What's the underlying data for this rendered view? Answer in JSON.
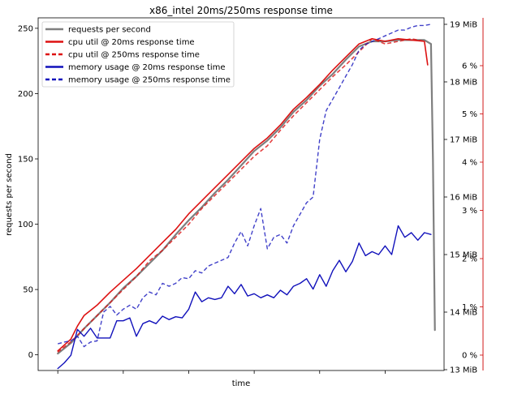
{
  "chart_data": {
    "type": "line",
    "title": "x86_intel 20ms/250ms response time",
    "xlabel": "time",
    "ylabel": "requests per second",
    "ylim": [
      -12,
      258
    ],
    "yticks": [
      0,
      50,
      100,
      150,
      200,
      250
    ],
    "xlim": [
      -3,
      59
    ],
    "xticks": [
      0,
      10,
      20,
      30,
      40,
      50,
      60
    ],
    "right_axis_mem": {
      "ticks": [
        "13 MiB",
        "14 MiB",
        "15 MiB",
        "16 MiB",
        "17 MiB",
        "18 MiB",
        "19 MiB"
      ]
    },
    "right_axis_cpu": {
      "color": "#cc0000",
      "ticks": [
        "0 %",
        "1 %",
        "2 %",
        "3 %",
        "4 %",
        "5 %",
        "6 %"
      ]
    },
    "legend": {
      "placement": "upper-left",
      "entries": [
        {
          "label": "requests per second",
          "color": "#7f7f7f",
          "dash": "solid"
        },
        {
          "label": "cpu util @ 20ms response time",
          "color": "#dd1111",
          "dash": "solid"
        },
        {
          "label": "cpu util @ 250ms response time",
          "color": "#dd1111",
          "dash": "dashed"
        },
        {
          "label": "memory usage @ 20ms response time",
          "color": "#1111bb",
          "dash": "solid"
        },
        {
          "label": "memory usage @ 250ms response time",
          "color": "#1111bb",
          "dash": "dashed"
        }
      ]
    },
    "series": [
      {
        "name": "requests per second",
        "color": "#7f7f7f",
        "dash": "solid",
        "width": 2.2,
        "x": [
          0,
          2,
          4,
          6,
          8,
          10,
          12,
          14,
          16,
          18,
          20,
          22,
          24,
          26,
          28,
          30,
          32,
          34,
          36,
          38,
          40,
          42,
          44,
          46,
          48,
          50,
          52,
          54,
          56,
          57,
          57.3,
          57.6
        ],
        "y": [
          1,
          9,
          20,
          30,
          40,
          51,
          60,
          70,
          80,
          92,
          103,
          113,
          124,
          134,
          145,
          156,
          164,
          174,
          186,
          195,
          206,
          215,
          226,
          236,
          240,
          240,
          241,
          241,
          241,
          238,
          150,
          19
        ]
      },
      {
        "name": "cpu util @ 20ms response time",
        "color": "#dd1111",
        "dash": "solid",
        "width": 1.6,
        "x": [
          0,
          2,
          3,
          4,
          6,
          8,
          10,
          12,
          14,
          16,
          18,
          20,
          22,
          24,
          26,
          28,
          30,
          32,
          34,
          36,
          38,
          40,
          42,
          44,
          46,
          48,
          50,
          52,
          54,
          56,
          56.5
        ],
        "y": [
          3,
          12,
          22,
          30,
          38,
          48,
          57,
          66,
          76,
          86,
          96,
          108,
          118,
          128,
          138,
          148,
          158,
          166,
          176,
          188,
          197,
          207,
          218,
          228,
          238,
          242,
          240,
          242,
          241,
          240,
          222
        ]
      },
      {
        "name": "cpu util @ 250ms response time",
        "color": "#dd1111",
        "dash": "dashed",
        "width": 1.6,
        "x": [
          0,
          2,
          4,
          6,
          8,
          10,
          12,
          14,
          16,
          18,
          20,
          22,
          24,
          26,
          28,
          30,
          32,
          34,
          36,
          38,
          40,
          42,
          44,
          46,
          48,
          50,
          52,
          54,
          56
        ],
        "y": [
          2,
          10,
          20,
          30,
          40,
          50,
          60,
          72,
          80,
          90,
          100,
          112,
          122,
          132,
          142,
          152,
          160,
          172,
          183,
          193,
          203,
          213,
          222,
          232,
          242,
          238,
          240,
          242,
          240
        ]
      },
      {
        "name": "memory usage @ 20ms response time",
        "color": "#1111bb",
        "dash": "solid",
        "width": 1.4,
        "x": [
          0,
          1,
          2,
          3,
          4,
          5,
          6,
          7,
          8,
          9,
          10,
          11,
          12,
          13,
          14,
          15,
          16,
          17,
          18,
          19,
          20,
          21,
          22,
          23,
          24,
          25,
          26,
          27,
          28,
          29,
          30,
          31,
          32,
          33,
          34,
          35,
          36,
          37,
          38,
          39,
          40,
          41,
          42,
          43,
          44,
          45,
          46,
          47,
          48,
          49,
          50,
          51,
          52,
          53,
          54,
          55,
          56,
          57
        ],
        "y": [
          13.02,
          13.12,
          13.25,
          13.7,
          13.58,
          13.72,
          13.55,
          13.55,
          13.55,
          13.85,
          13.85,
          13.9,
          13.58,
          13.8,
          13.85,
          13.8,
          13.93,
          13.87,
          13.92,
          13.9,
          14.05,
          14.35,
          14.18,
          14.25,
          14.22,
          14.25,
          14.45,
          14.32,
          14.48,
          14.28,
          14.32,
          14.25,
          14.3,
          14.25,
          14.38,
          14.3,
          14.45,
          14.5,
          14.58,
          14.4,
          14.65,
          14.45,
          14.72,
          14.9,
          14.7,
          14.88,
          15.2,
          14.98,
          15.05,
          15.0,
          15.15,
          15.0,
          15.5,
          15.3,
          15.38,
          15.25,
          15.38,
          15.35
        ]
      },
      {
        "name": "memory usage @ 250ms response time",
        "color": "#1111bb",
        "dash": "dashed",
        "width": 1.4,
        "x": [
          0,
          1,
          2,
          3,
          4,
          5,
          6,
          7,
          8,
          9,
          10,
          11,
          12,
          13,
          14,
          15,
          16,
          17,
          18,
          19,
          20,
          21,
          22,
          23,
          24,
          25,
          26,
          27,
          28,
          29,
          30,
          31,
          32,
          33,
          34,
          35,
          36,
          37,
          38,
          39,
          40,
          41,
          42,
          43,
          44,
          45,
          46,
          47,
          48,
          49,
          50,
          51,
          52,
          53,
          54,
          55,
          56,
          57
        ],
        "y": [
          13.45,
          13.48,
          13.5,
          13.58,
          13.4,
          13.48,
          13.5,
          14.0,
          14.1,
          13.95,
          14.05,
          14.12,
          14.05,
          14.25,
          14.35,
          14.3,
          14.5,
          14.45,
          14.5,
          14.6,
          14.58,
          14.72,
          14.68,
          14.8,
          14.85,
          14.9,
          14.95,
          15.2,
          15.4,
          15.15,
          15.5,
          15.8,
          15.1,
          15.3,
          15.35,
          15.2,
          15.5,
          15.7,
          15.9,
          16.0,
          17.0,
          17.5,
          17.7,
          17.9,
          18.1,
          18.3,
          18.55,
          18.65,
          18.7,
          18.75,
          18.8,
          18.85,
          18.9,
          18.9,
          18.95,
          18.98,
          18.98,
          19.0
        ]
      }
    ]
  }
}
